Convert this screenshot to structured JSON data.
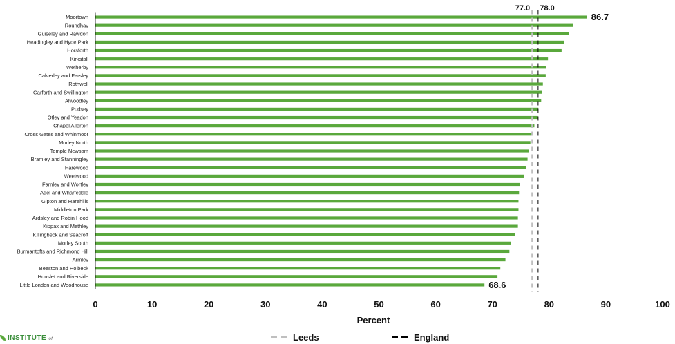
{
  "chart_data": {
    "type": "bar",
    "orientation": "horizontal",
    "categories": [
      "Moortown",
      "Roundhay",
      "Guiseley and Rawdon",
      "Headingley and Hyde Park",
      "Horsforth",
      "Kirkstall",
      "Wetherby",
      "Calverley and Farsley",
      "Rothwell",
      "Garforth and Swillington",
      "Alwoodley",
      "Pudsey",
      "Otley and Yeadon",
      "Chapel Allerton",
      "Cross Gates and Whinmoor",
      "Morley North",
      "Temple Newsam",
      "Bramley and Stanningley",
      "Harewood",
      "Weetwood",
      "Farnley and Wortley",
      "Adel and Wharfedale",
      "Gipton and Harehills",
      "Middleton Park",
      "Ardsley and Robin Hood",
      "Kippax and Methley",
      "Killingbeck and Seacroft",
      "Morley South",
      "Burmantofts and Richmond Hill",
      "Armley",
      "Beeston and Holbeck",
      "Hunslet and Riverside",
      "Little London and Woodhouse"
    ],
    "values": [
      86.7,
      84.2,
      83.5,
      82.7,
      82.2,
      79.8,
      79.5,
      79.4,
      78.9,
      78.8,
      78.6,
      78.1,
      77.9,
      77.4,
      77.0,
      76.7,
      76.4,
      76.2,
      75.9,
      75.6,
      74.9,
      74.7,
      74.6,
      74.6,
      74.5,
      74.5,
      74.0,
      73.3,
      73.0,
      72.3,
      71.4,
      70.9,
      68.6
    ],
    "value_labels": [
      {
        "index": 0,
        "text": "86.7"
      },
      {
        "index": 32,
        "text": "68.6"
      }
    ],
    "reference_lines": [
      {
        "name": "Leeds",
        "value": 77.0,
        "label": "77.0",
        "color": "#bfbfbf",
        "style": "dashed"
      },
      {
        "name": "England",
        "value": 78.0,
        "label": "78.0",
        "color": "#000000",
        "style": "dashed"
      }
    ],
    "xlabel": "Percent",
    "xlim": [
      0,
      100
    ],
    "xticks": [
      "0",
      "10",
      "20",
      "30",
      "40",
      "50",
      "60",
      "70",
      "80",
      "90",
      "100"
    ],
    "bar_color": "#5aa83c",
    "legend": {
      "position": "bottom",
      "entries": [
        "Leeds",
        "England"
      ]
    }
  },
  "logo": {
    "text": "INSTITUTE",
    "suffix": "of"
  }
}
